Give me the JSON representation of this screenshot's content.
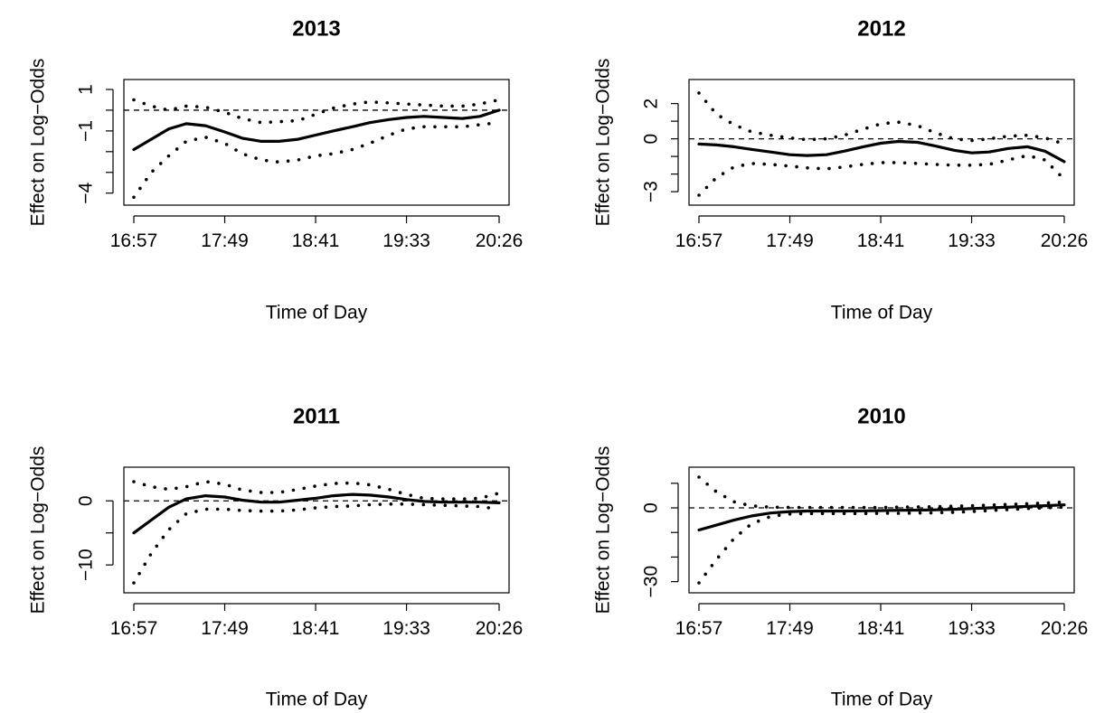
{
  "chart_data": [
    {
      "type": "line",
      "title": "2013",
      "xlabel": "Time of Day",
      "ylabel": "Effect on Log−Odds",
      "x_tick_labels": [
        "16:57",
        "17:49",
        "18:41",
        "19:33",
        "20:26"
      ],
      "y_tick_labels": [
        "−4",
        "−1",
        "1"
      ],
      "y_ticks": [
        -4,
        -3,
        -2,
        -1,
        0,
        1
      ],
      "ylim": [
        -4.1,
        1.0
      ],
      "reference_line": 0,
      "x": [
        "16:57",
        "17:07",
        "17:17",
        "17:27",
        "17:38",
        "17:49",
        "17:59",
        "18:10",
        "18:20",
        "18:31",
        "18:41",
        "18:51",
        "19:02",
        "19:12",
        "19:23",
        "19:33",
        "19:43",
        "19:54",
        "20:05",
        "20:15",
        "20:26"
      ],
      "series": [
        {
          "style": "solid",
          "values": [
            -1.9,
            -1.4,
            -0.9,
            -0.65,
            -0.75,
            -1.05,
            -1.35,
            -1.5,
            -1.5,
            -1.4,
            -1.2,
            -1.0,
            -0.8,
            -0.6,
            -0.45,
            -0.35,
            -0.3,
            -0.35,
            -0.4,
            -0.3,
            0.0
          ]
        },
        {
          "style": "dotted",
          "values": [
            0.5,
            0.2,
            0.0,
            0.2,
            0.15,
            -0.1,
            -0.4,
            -0.6,
            -0.55,
            -0.5,
            -0.2,
            0.1,
            0.3,
            0.4,
            0.35,
            0.3,
            0.25,
            0.2,
            0.2,
            0.3,
            0.5
          ]
        },
        {
          "style": "dotted",
          "values": [
            -4.2,
            -3.0,
            -2.2,
            -1.5,
            -1.3,
            -1.6,
            -2.1,
            -2.4,
            -2.5,
            -2.4,
            -2.2,
            -2.1,
            -1.9,
            -1.6,
            -1.2,
            -0.9,
            -0.8,
            -0.8,
            -0.8,
            -0.7,
            -0.6
          ]
        }
      ]
    },
    {
      "type": "line",
      "title": "2012",
      "xlabel": "Time of Day",
      "ylabel": "Effect on Log−Odds",
      "x_tick_labels": [
        "16:57",
        "17:49",
        "18:41",
        "19:33",
        "20:26"
      ],
      "y_tick_labels": [
        "−3",
        "0",
        "2"
      ],
      "y_ticks": [
        -3,
        -2,
        -1,
        0,
        1,
        2
      ],
      "ylim": [
        -3.2,
        2.8
      ],
      "reference_line": 0,
      "x": [
        "16:57",
        "17:07",
        "17:17",
        "17:27",
        "17:38",
        "17:49",
        "17:59",
        "18:10",
        "18:20",
        "18:31",
        "18:41",
        "18:51",
        "19:02",
        "19:12",
        "19:23",
        "19:33",
        "19:43",
        "19:54",
        "20:05",
        "20:15",
        "20:26"
      ],
      "series": [
        {
          "style": "solid",
          "values": [
            -0.3,
            -0.35,
            -0.45,
            -0.6,
            -0.75,
            -0.9,
            -0.95,
            -0.9,
            -0.7,
            -0.45,
            -0.25,
            -0.15,
            -0.2,
            -0.4,
            -0.65,
            -0.8,
            -0.75,
            -0.55,
            -0.45,
            -0.7,
            -1.3
          ]
        },
        {
          "style": "dotted",
          "values": [
            2.6,
            1.4,
            0.8,
            0.4,
            0.2,
            0.05,
            -0.05,
            0.0,
            0.2,
            0.55,
            0.85,
            0.95,
            0.75,
            0.35,
            0.0,
            -0.1,
            0.0,
            0.15,
            0.2,
            0.05,
            -0.3
          ]
        },
        {
          "style": "dotted",
          "values": [
            -3.2,
            -2.2,
            -1.6,
            -1.4,
            -1.45,
            -1.55,
            -1.65,
            -1.7,
            -1.6,
            -1.45,
            -1.35,
            -1.35,
            -1.4,
            -1.45,
            -1.5,
            -1.5,
            -1.45,
            -1.2,
            -0.95,
            -1.2,
            -2.3
          ]
        }
      ]
    },
    {
      "type": "line",
      "title": "2011",
      "xlabel": "Time of Day",
      "ylabel": "Effect on Log−Odds",
      "x_tick_labels": [
        "16:57",
        "17:49",
        "18:41",
        "19:33",
        "20:26"
      ],
      "y_tick_labels": [
        "−10",
        "0"
      ],
      "y_ticks": [
        -10,
        -5,
        0
      ],
      "ylim": [
        -12.8,
        3.7
      ],
      "reference_line": 0,
      "x": [
        "16:57",
        "17:07",
        "17:17",
        "17:27",
        "17:38",
        "17:49",
        "17:59",
        "18:10",
        "18:20",
        "18:31",
        "18:41",
        "18:51",
        "19:02",
        "19:12",
        "19:23",
        "19:33",
        "19:43",
        "19:54",
        "20:05",
        "20:15",
        "20:26"
      ],
      "series": [
        {
          "style": "solid",
          "values": [
            -5.0,
            -3.0,
            -1.0,
            0.3,
            0.8,
            0.6,
            0.1,
            -0.2,
            -0.2,
            0.1,
            0.4,
            0.8,
            1.0,
            0.9,
            0.6,
            0.2,
            -0.1,
            -0.2,
            -0.2,
            -0.2,
            -0.3
          ]
        },
        {
          "style": "dotted",
          "values": [
            3.0,
            2.2,
            1.8,
            2.2,
            3.0,
            2.6,
            1.7,
            1.3,
            1.3,
            1.8,
            2.3,
            2.7,
            2.8,
            2.5,
            1.8,
            1.0,
            0.4,
            0.3,
            0.3,
            0.4,
            1.2
          ]
        },
        {
          "style": "dotted",
          "values": [
            -12.8,
            -8.2,
            -4.5,
            -2.0,
            -1.3,
            -1.3,
            -1.5,
            -1.6,
            -1.6,
            -1.4,
            -1.1,
            -0.9,
            -0.8,
            -0.6,
            -0.5,
            -0.5,
            -0.6,
            -0.7,
            -0.8,
            -0.9,
            -1.3
          ]
        }
      ]
    },
    {
      "type": "line",
      "title": "2010",
      "xlabel": "Time of Day",
      "ylabel": "Effect on Log−Odds",
      "x_tick_labels": [
        "16:57",
        "17:49",
        "18:41",
        "19:33",
        "20:26"
      ],
      "y_tick_labels": [
        "−30",
        "0"
      ],
      "y_ticks": [
        -30,
        -20,
        -10,
        0,
        10
      ],
      "ylim": [
        -30.5,
        12.5
      ],
      "reference_line": 0,
      "x": [
        "16:57",
        "17:07",
        "17:17",
        "17:27",
        "17:38",
        "17:49",
        "17:59",
        "18:10",
        "18:20",
        "18:31",
        "18:41",
        "18:51",
        "19:02",
        "19:12",
        "19:23",
        "19:33",
        "19:43",
        "19:54",
        "20:05",
        "20:15",
        "20:26"
      ],
      "series": [
        {
          "style": "solid",
          "values": [
            -9.0,
            -7.0,
            -5.0,
            -3.3,
            -2.1,
            -1.5,
            -1.3,
            -1.3,
            -1.3,
            -1.2,
            -1.1,
            -1.0,
            -0.9,
            -0.8,
            -0.6,
            -0.3,
            0.0,
            0.3,
            0.6,
            0.9,
            1.2
          ]
        },
        {
          "style": "dotted",
          "values": [
            12.5,
            6.5,
            2.5,
            0.8,
            0.3,
            0.2,
            0.2,
            0.2,
            0.2,
            0.2,
            0.2,
            0.3,
            0.4,
            0.5,
            0.7,
            0.9,
            1.1,
            1.4,
            1.7,
            2.0,
            2.4
          ]
        },
        {
          "style": "dotted",
          "values": [
            -30.5,
            -21.0,
            -12.5,
            -6.5,
            -3.5,
            -2.5,
            -2.3,
            -2.3,
            -2.3,
            -2.3,
            -2.2,
            -2.2,
            -2.1,
            -2.0,
            -1.8,
            -1.5,
            -1.1,
            -0.7,
            -0.3,
            0.0,
            0.3
          ]
        }
      ]
    }
  ]
}
